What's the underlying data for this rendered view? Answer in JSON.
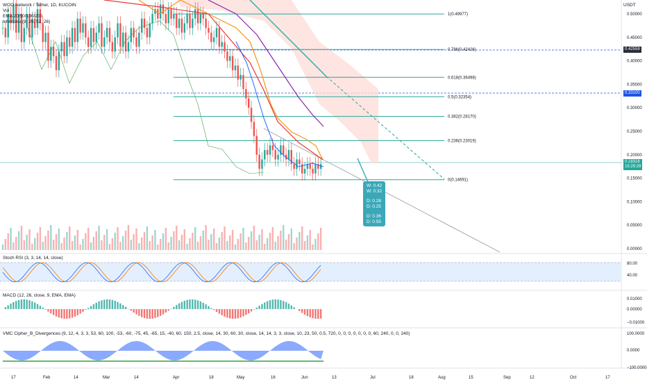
{
  "header": {
    "symbol_line": "WOO Network / Tether, 1D, KUCOIN",
    "vol_label": "Vol",
    "ema_label": "EMA 20/50/100/200",
    "ichimoku_label": "Ichimoku (9, 26, 52, 26)",
    "currency": "USDT"
  },
  "price_axis": {
    "ticks": [
      "0.50000",
      "0.45000",
      "0.40000",
      "0.35000",
      "0.30000",
      "0.25000",
      "0.20000",
      "0.15000",
      "0.10000",
      "0.05000",
      "0.00000"
    ],
    "ticks_values": [
      0.5,
      0.45,
      0.4,
      0.35,
      0.3,
      0.25,
      0.2,
      0.15,
      0.1,
      0.05,
      0.0
    ],
    "tag_upper": "0.42559",
    "tag_mid": "0.33100",
    "tag_current": "0.18318",
    "tag_countdown": "15:29:29",
    "colors": {
      "upper": "#2a2e39",
      "mid": "#1e53e5",
      "current": "#26a69a"
    }
  },
  "fib_levels": [
    {
      "label": "1(0.49977)",
      "value": 0.49977
    },
    {
      "label": "0.786(0.42426)",
      "value": 0.42426
    },
    {
      "label": "0.618(0.36498)",
      "value": 0.36498
    },
    {
      "label": "0.5(0.32354)",
      "value": 0.32354
    },
    {
      "label": "0.382(0.28170)",
      "value": 0.2817
    },
    {
      "label": "0.236(0.23019)",
      "value": 0.23019
    },
    {
      "label": "0(0.14691)",
      "value": 0.14691
    }
  ],
  "tooltip": {
    "lines_a": [
      "W: 0.42",
      "W: 0.32"
    ],
    "lines_b": [
      "D: 0.28",
      "D: 0.25"
    ],
    "lines_c": [
      "D: 0.36",
      "D: 0.55"
    ]
  },
  "stoch_rsi": {
    "label": "Stoch RSI (3, 3, 14, 14, close)",
    "ticks": [
      "80.00",
      "40.00"
    ]
  },
  "macd": {
    "label": "MACD (12, 26, close, 9, EMA, EMA)",
    "ticks": [
      "0.01000",
      "0.00000",
      "−0.01000"
    ]
  },
  "vmc": {
    "label": "VMC Cipher_B_Divergences (9, 12, 4, 3, 3, 53, 60, 100, -53, -60, -75, 45, -65, 15, -40, 60, 150, 2.5, close, 14, 30, 60, 30, close, 14, 14, 3, 3, close, 10, 23, 50, 0.5, 720, 0, 0, 0, 0, 0, 0, 0, 60, 240, 0, 0, 240)",
    "ticks": [
      "100.0000",
      "0.0000",
      "−100.0000"
    ]
  },
  "time_axis": {
    "labels": [
      "17",
      "Feb",
      "14",
      "Mar",
      "14",
      "Apr",
      "18",
      "May",
      "16",
      "Jun",
      "13",
      "Jul",
      "18",
      "Aug",
      "15",
      "Sep",
      "12",
      "Oct",
      "17"
    ]
  },
  "colors": {
    "up": "#26a69a",
    "down": "#ef5350",
    "fib": "#26a69a",
    "ema_orange": "#f7931a",
    "ema_red": "#e53935",
    "ema_purple": "#8e24aa",
    "ema_blue": "#2962ff",
    "lagging": "#43a047",
    "cloud": "#fddcd8",
    "stoch_k": "#2962ff",
    "stoch_d": "#f57c00",
    "stoch_band": "#e3effd"
  },
  "chart_data": {
    "type": "candlestick",
    "price_ylim": [
      0.0,
      0.52
    ],
    "approx_daily_closes": [
      0.47,
      0.45,
      0.5,
      0.48,
      0.52,
      0.46,
      0.5,
      0.44,
      0.47,
      0.5,
      0.45,
      0.49,
      0.47,
      0.51,
      0.48,
      0.44,
      0.46,
      0.4,
      0.43,
      0.41,
      0.38,
      0.42,
      0.44,
      0.41,
      0.45,
      0.43,
      0.47,
      0.44,
      0.49,
      0.46,
      0.48,
      0.45,
      0.43,
      0.47,
      0.44,
      0.46,
      0.48,
      0.43,
      0.45,
      0.47,
      0.44,
      0.42,
      0.45,
      0.48,
      0.43,
      0.46,
      0.42,
      0.44,
      0.47,
      0.45,
      0.43,
      0.46,
      0.49,
      0.47,
      0.45,
      0.48,
      0.5,
      0.51,
      0.49,
      0.52,
      0.5,
      0.48,
      0.51,
      0.49,
      0.5,
      0.47,
      0.49,
      0.46,
      0.48,
      0.5,
      0.47,
      0.49,
      0.51,
      0.48,
      0.5,
      0.49,
      0.47,
      0.46,
      0.44,
      0.45,
      0.47,
      0.43,
      0.44,
      0.42,
      0.4,
      0.41,
      0.38,
      0.39,
      0.36,
      0.37,
      0.34,
      0.32,
      0.3,
      0.27,
      0.24,
      0.2,
      0.17,
      0.19,
      0.21,
      0.2,
      0.22,
      0.21,
      0.19,
      0.2,
      0.22,
      0.2,
      0.19,
      0.21,
      0.18,
      0.17,
      0.19,
      0.18,
      0.16,
      0.17,
      0.18,
      0.17,
      0.16,
      0.18,
      0.17,
      0.18
    ]
  }
}
